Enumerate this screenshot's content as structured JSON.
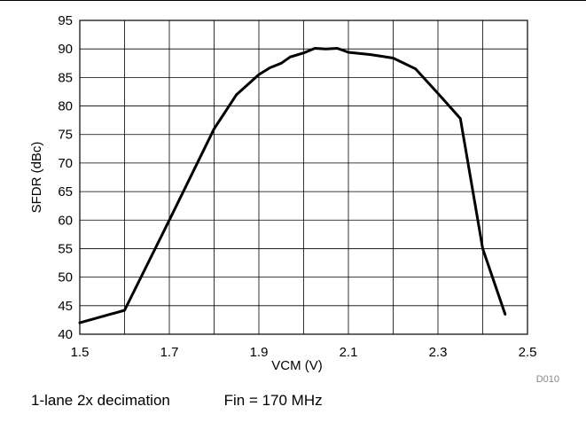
{
  "chart_data": {
    "type": "line",
    "xlabel": "VCM (V)",
    "ylabel": "SFDR (dBc)",
    "xlim": [
      1.5,
      2.5
    ],
    "ylim": [
      40,
      95
    ],
    "xticks": [
      1.5,
      1.7,
      1.9,
      2.1,
      2.3,
      2.5
    ],
    "xtick_labels": [
      "1.5",
      "1.7",
      "1.9",
      "2.1",
      "2.3",
      "2.5"
    ],
    "yticks": [
      40,
      45,
      50,
      55,
      60,
      65,
      70,
      75,
      80,
      85,
      90,
      95
    ],
    "ytick_labels": [
      "40",
      "45",
      "50",
      "55",
      "60",
      "65",
      "70",
      "75",
      "80",
      "85",
      "90",
      "95"
    ],
    "x_minor_grid": [
      1.6,
      1.8,
      2.0,
      2.2,
      2.4
    ],
    "grid": true,
    "series": [
      {
        "x": [
          1.5,
          1.6,
          1.7,
          1.8,
          1.85,
          1.9,
          1.925,
          1.95,
          1.97,
          1.975,
          2.0,
          2.025,
          2.05,
          2.075,
          2.1,
          2.15,
          2.2,
          2.25,
          2.3,
          2.35,
          2.4,
          2.45
        ],
        "y": [
          42,
          44.2,
          60,
          76,
          82,
          85.5,
          86.7,
          87.5,
          88.6,
          88.7,
          89.3,
          90.1,
          90.0,
          90.1,
          89.4,
          89.0,
          88.4,
          86.5,
          82.2,
          77.8,
          55.0,
          43.5
        ],
        "color": "#000000"
      }
    ],
    "figure_id": "D010"
  },
  "caption": {
    "left": "1-lane 2x decimation",
    "right": "Fin = 170 MHz"
  }
}
